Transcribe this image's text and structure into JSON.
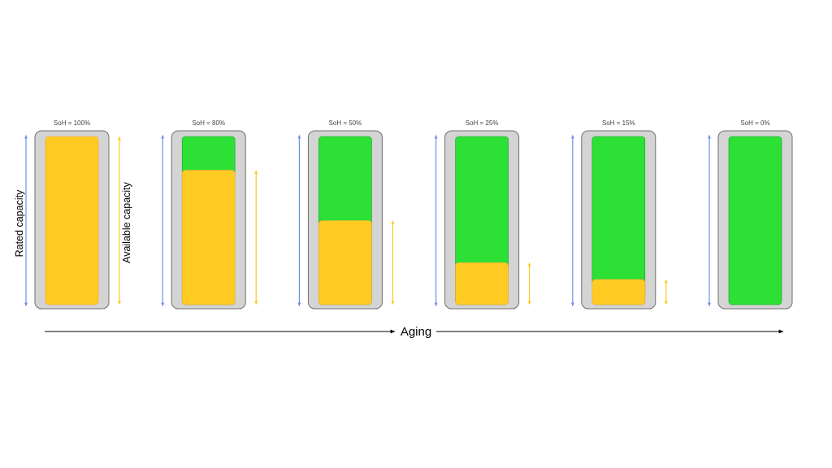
{
  "labels": {
    "rated_capacity": "Rated capacity",
    "available_capacity": "Available capacity",
    "aging": "Aging"
  },
  "colors": {
    "casing": "#d4d4d4",
    "casing_border": "#6f6f6f",
    "available": "#ffcb22",
    "lost": "#2ce035",
    "rated_arrow": "#6b8ff0",
    "available_arrow": "#ffc81e",
    "axis": "#000000"
  },
  "batteries": [
    {
      "label": "SoH = 100%",
      "soh": 100
    },
    {
      "label": "SoH = 80%",
      "soh": 80
    },
    {
      "label": "SoH = 50%",
      "soh": 50
    },
    {
      "label": "SoH = 25%",
      "soh": 25
    },
    {
      "label": "SoH = 15%",
      "soh": 15
    },
    {
      "label": "SoH = 0%",
      "soh": 0
    }
  ]
}
